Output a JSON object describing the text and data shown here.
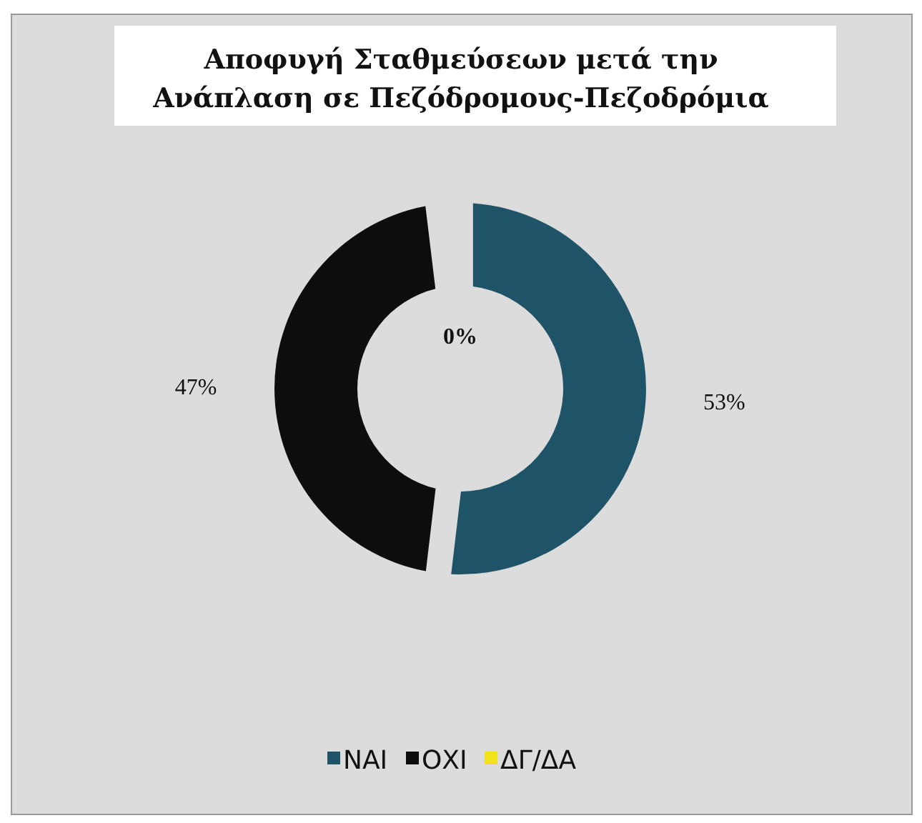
{
  "chart_data": {
    "type": "donut",
    "title": "Αποφυγή Σταθμεύσεων μετά την\nΑνάπλαση σε Πεζόδρομους-Πεζοδρόμια",
    "categories": [
      "ΝΑΙ",
      "ΟΧΙ",
      "ΔΓ/ΔΑ"
    ],
    "values": [
      53,
      47,
      0
    ],
    "colors": [
      "#1f5468",
      "#0d0d0d",
      "#f2e21a"
    ],
    "value_labels": [
      "53%",
      "47%",
      "0%"
    ],
    "legend": "bottom"
  }
}
